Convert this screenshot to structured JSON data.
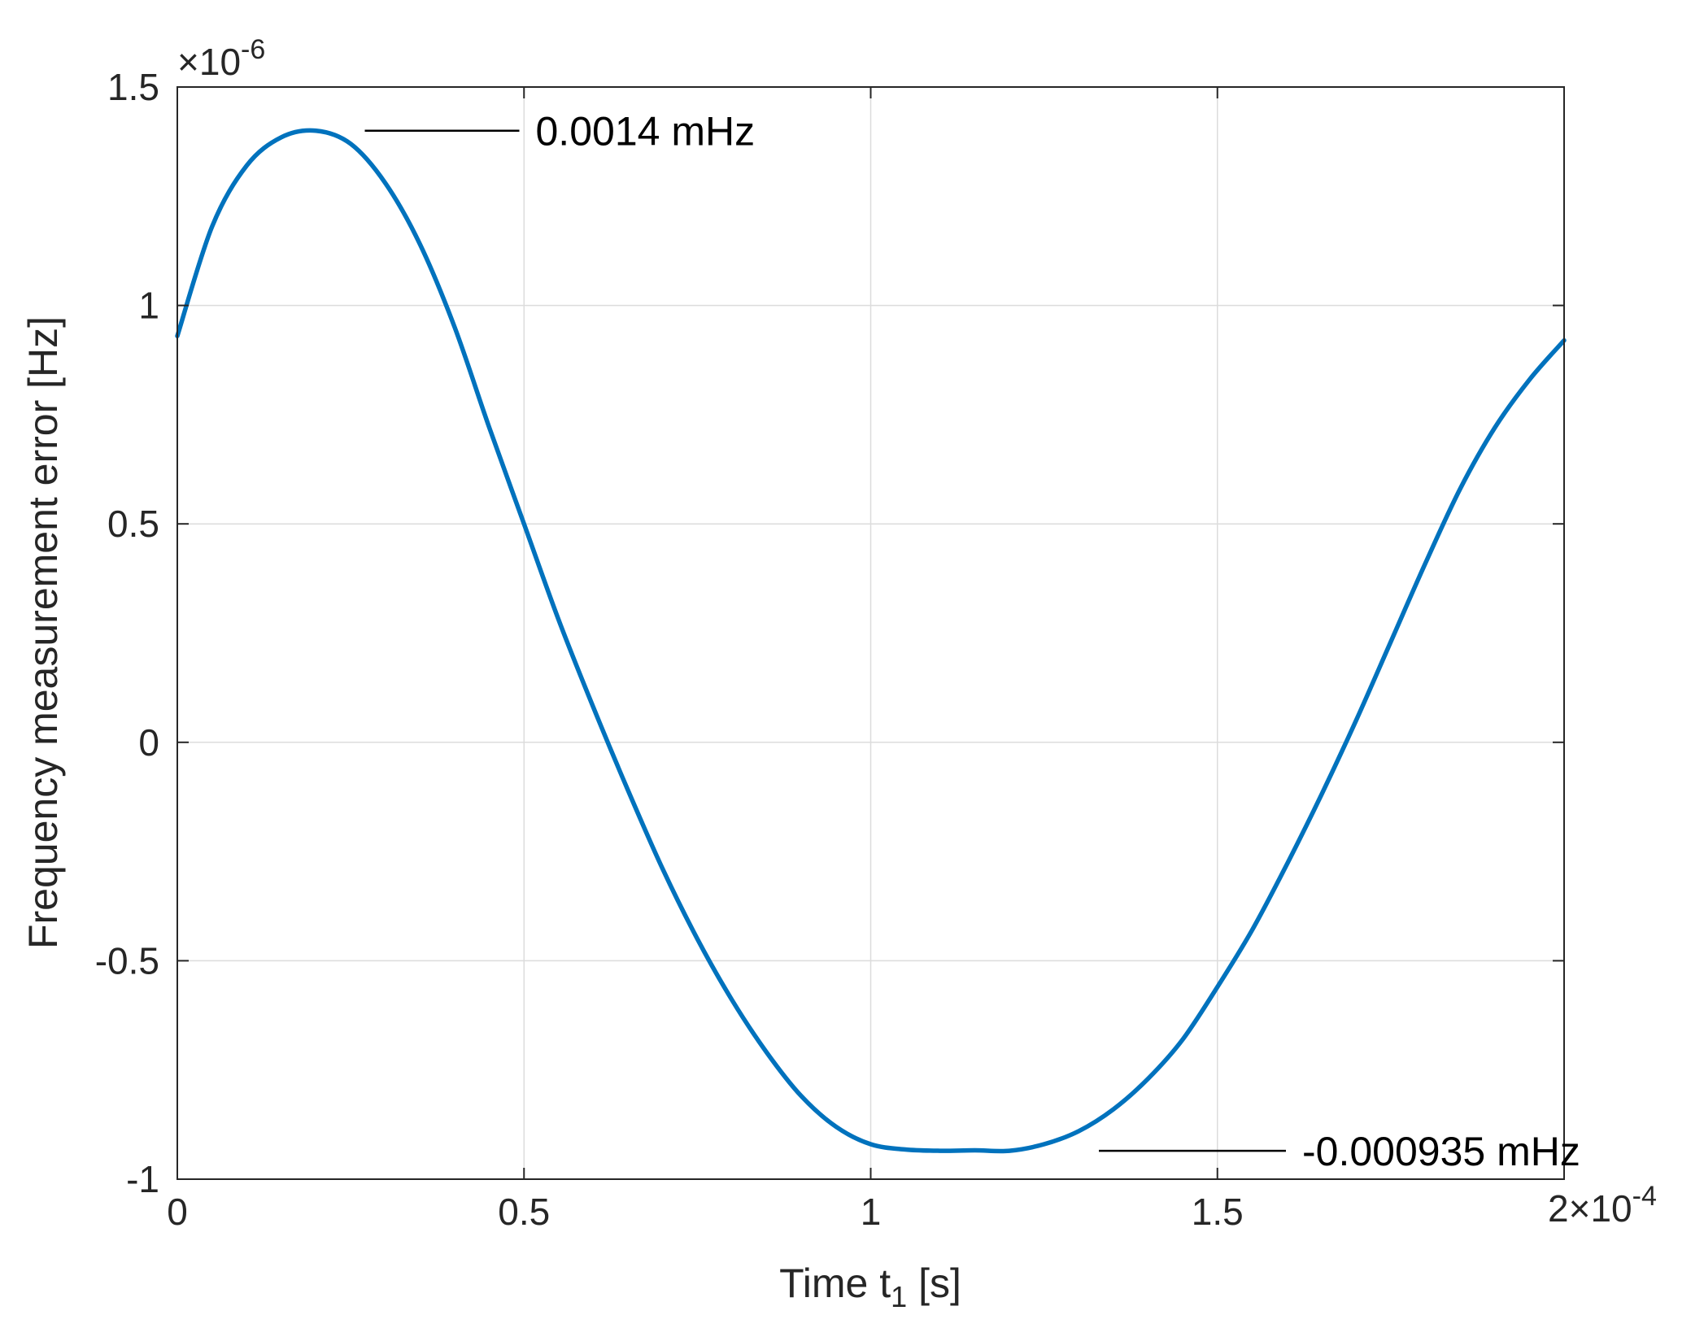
{
  "chart_data": {
    "type": "line",
    "xlabel_main": "Time t",
    "xlabel_sub": "1",
    "xlabel_unit": " [s]",
    "ylabel": "Frequency measurement error [Hz]",
    "x_exponent": {
      "base": "2×10",
      "power": "-4"
    },
    "y_exponent": {
      "base": "×10",
      "power": "-6"
    },
    "xlim": [
      0,
      0.0002
    ],
    "ylim": [
      -1e-06,
      1.5e-06
    ],
    "x_ticks": [
      0,
      5e-05,
      0.0001,
      0.00015,
      0.0002
    ],
    "x_tick_labels": [
      "0",
      "0.5",
      "1",
      "1.5",
      ""
    ],
    "y_ticks": [
      -1e-06,
      -5e-07,
      0,
      5e-07,
      1e-06,
      1.5e-06
    ],
    "y_tick_labels": [
      "-1",
      "-0.5",
      "0",
      "0.5",
      "1",
      "1.5"
    ],
    "grid": true,
    "series": [
      {
        "color": "#0072BD",
        "x": [
          0,
          5e-06,
          1e-05,
          1.5e-05,
          2e-05,
          2.5e-05,
          3e-05,
          3.5e-05,
          4e-05,
          4.5e-05,
          5e-05,
          5.5e-05,
          6e-05,
          6.5e-05,
          7e-05,
          7.5e-05,
          8e-05,
          8.5e-05,
          9e-05,
          9.5e-05,
          0.0001,
          0.000105,
          0.00011,
          0.000115,
          0.00012,
          0.000125,
          0.00013,
          0.000135,
          0.00014,
          0.000145,
          0.00015,
          0.000155,
          0.00016,
          0.000165,
          0.00017,
          0.000175,
          0.00018,
          0.000185,
          0.00019,
          0.000195,
          0.0002
        ],
        "y": [
          9.3e-07,
          1.18e-06,
          1.32e-06,
          1.385e-06,
          1.4e-06,
          1.37e-06,
          1.28e-06,
          1.14e-06,
          9.5e-07,
          7.2e-07,
          5e-07,
          2.8e-07,
          8e-08,
          -1.1e-07,
          -2.9e-07,
          -4.5e-07,
          -5.9e-07,
          -7.1e-07,
          -8.1e-07,
          -8.8e-07,
          -9.2e-07,
          -9.32e-07,
          -9.35e-07,
          -9.34e-07,
          -9.35e-07,
          -9.2e-07,
          -8.9e-07,
          -8.4e-07,
          -7.7e-07,
          -6.8e-07,
          -5.6e-07,
          -4.3e-07,
          -2.8e-07,
          -1.2e-07,
          5e-08,
          2.3e-07,
          4.1e-07,
          5.8e-07,
          7.2e-07,
          8.3e-07,
          9.2e-07
        ]
      }
    ],
    "annotations": [
      {
        "text": "0.0014 mHz",
        "x": 2e-05,
        "y": 1.4e-06
      },
      {
        "text": "-0.000935 mHz",
        "x": 0.00012,
        "y": -9.35e-07
      }
    ]
  }
}
